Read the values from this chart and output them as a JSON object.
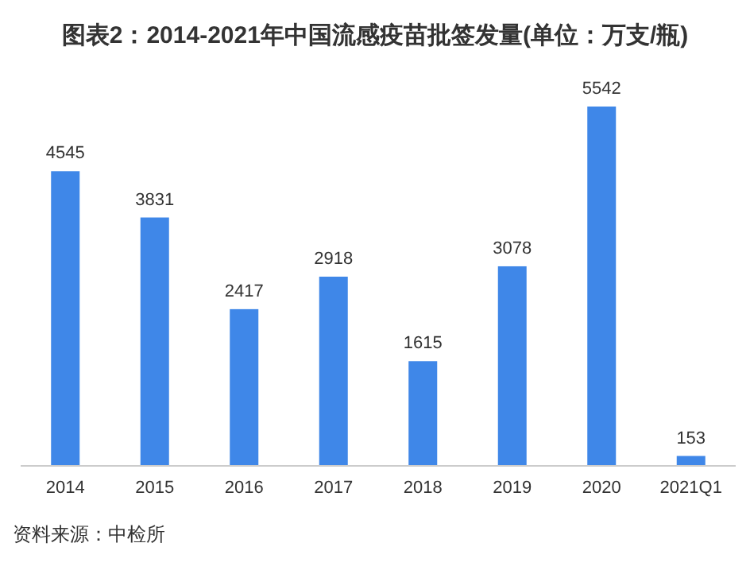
{
  "chart_data": {
    "type": "bar",
    "title": "图表2：2014-2021年中国流感疫苗批签发量(单位：万支/瓶)",
    "categories": [
      "2014",
      "2015",
      "2016",
      "2017",
      "2018",
      "2019",
      "2020",
      "2021Q1"
    ],
    "values": [
      4545,
      3831,
      2417,
      2918,
      1615,
      3078,
      5542,
      153
    ],
    "color": "#3f87e8",
    "data_labels": true,
    "annotations": [
      "资料来源：中检所"
    ]
  }
}
